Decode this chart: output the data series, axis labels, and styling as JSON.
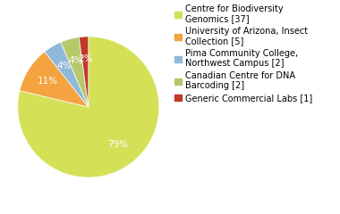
{
  "labels": [
    "Centre for Biodiversity\nGenomics [37]",
    "University of Arizona, Insect\nCollection [5]",
    "Pima Community College,\nNorthwest Campus [2]",
    "Canadian Centre for DNA\nBarcoding [2]",
    "Generic Commercial Labs [1]"
  ],
  "values": [
    37,
    5,
    2,
    2,
    1
  ],
  "colors": [
    "#d4e157",
    "#f4a340",
    "#90b8d8",
    "#b5c96a",
    "#c0392b"
  ],
  "background_color": "#ffffff",
  "text_color": "#ffffff",
  "label_fontsize": 7.0,
  "pct_fontsize": 7.5
}
